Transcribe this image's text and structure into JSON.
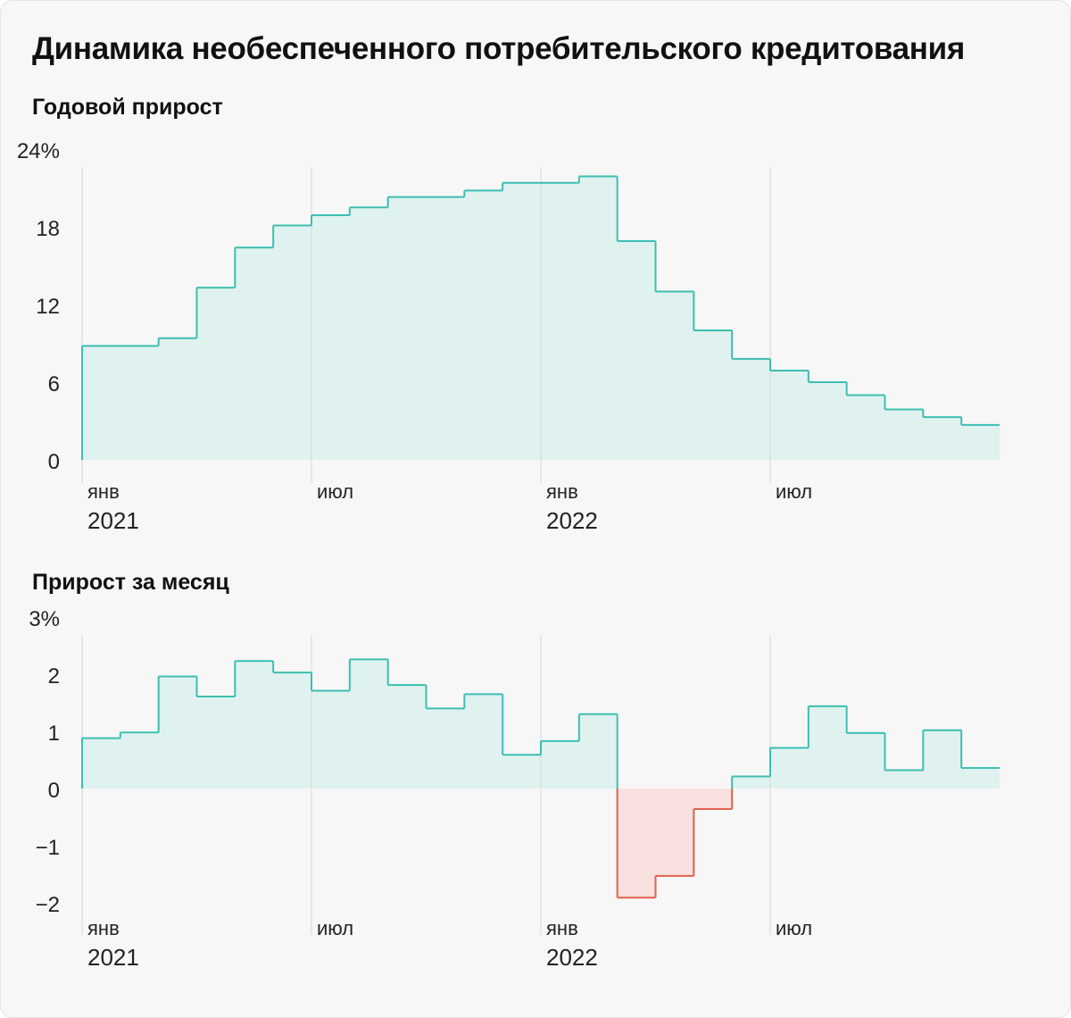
{
  "title": "Динамика необеспеченного потребительского кредитования",
  "colors": {
    "positive_line": "#3cbfb2",
    "positive_fill": "#e0f2ef",
    "negative_line": "#e0614f",
    "negative_fill": "#f8e1df",
    "gridline": "#d6d6d6",
    "background": "#f7f7f7"
  },
  "chart_data": [
    {
      "type": "area",
      "subtitle": "Годовой прирост",
      "step": true,
      "ylim": [
        0,
        24
      ],
      "y_ticks": [
        {
          "value": 24,
          "label": "24%"
        },
        {
          "value": 18,
          "label": "18"
        },
        {
          "value": 12,
          "label": "12"
        },
        {
          "value": 6,
          "label": "6"
        },
        {
          "value": 0,
          "label": "0"
        }
      ],
      "x": [
        "2021-01",
        "2021-02",
        "2021-03",
        "2021-04",
        "2021-05",
        "2021-06",
        "2021-07",
        "2021-08",
        "2021-09",
        "2021-10",
        "2021-11",
        "2021-12",
        "2022-01",
        "2022-02",
        "2022-03",
        "2022-04",
        "2022-05",
        "2022-06",
        "2022-07",
        "2022-08",
        "2022-09",
        "2022-10",
        "2022-11",
        "2022-12"
      ],
      "values": [
        8.8,
        8.8,
        9.4,
        13.3,
        16.4,
        18.1,
        18.9,
        19.5,
        20.3,
        20.3,
        20.8,
        21.4,
        21.4,
        21.9,
        16.9,
        13.0,
        10.0,
        7.8,
        6.9,
        6.0,
        5.0,
        3.9,
        3.3,
        2.7
      ],
      "x_ticks": [
        {
          "x": "2021-01",
          "label": "янв",
          "year": "2021"
        },
        {
          "x": "2021-07",
          "label": "июл",
          "year": ""
        },
        {
          "x": "2022-01",
          "label": "янв",
          "year": "2022"
        },
        {
          "x": "2022-07",
          "label": "июл",
          "year": ""
        }
      ]
    },
    {
      "type": "area",
      "subtitle": "Прирост за месяц",
      "step": true,
      "ylim": [
        -2,
        3
      ],
      "y_ticks": [
        {
          "value": 3,
          "label": "3%"
        },
        {
          "value": 2,
          "label": "2"
        },
        {
          "value": 1,
          "label": "1"
        },
        {
          "value": 0,
          "label": "0"
        },
        {
          "value": -1,
          "label": "−1"
        },
        {
          "value": -2,
          "label": "−2"
        }
      ],
      "x": [
        "2021-01",
        "2021-02",
        "2021-03",
        "2021-04",
        "2021-05",
        "2021-06",
        "2021-07",
        "2021-08",
        "2021-09",
        "2021-10",
        "2021-11",
        "2021-12",
        "2022-01",
        "2022-02",
        "2022-03",
        "2022-04",
        "2022-05",
        "2022-06",
        "2022-07",
        "2022-08",
        "2022-09",
        "2022-10",
        "2022-11",
        "2022-12"
      ],
      "values": [
        0.88,
        0.98,
        1.96,
        1.61,
        2.23,
        2.03,
        1.71,
        2.26,
        1.81,
        1.4,
        1.65,
        0.59,
        0.83,
        1.3,
        -1.91,
        -1.53,
        -0.36,
        0.21,
        0.71,
        1.44,
        0.97,
        0.32,
        1.02,
        0.36
      ],
      "x_ticks": [
        {
          "x": "2021-01",
          "label": "янв",
          "year": "2021"
        },
        {
          "x": "2021-07",
          "label": "июл",
          "year": ""
        },
        {
          "x": "2022-01",
          "label": "янв",
          "year": "2022"
        },
        {
          "x": "2022-07",
          "label": "июл",
          "year": ""
        }
      ]
    }
  ]
}
